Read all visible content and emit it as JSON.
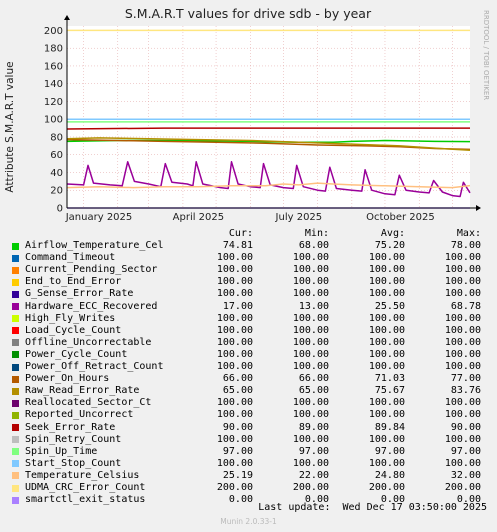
{
  "chart_data": {
    "type": "line",
    "title": "S.M.A.R.T values for drive sdb - by year",
    "ylabel": "Attribute S.M.A.R.T value",
    "side_label": "RRDTOOL / TOBI OETIKER",
    "ylim": [
      0,
      205
    ],
    "yticks": [
      0,
      20,
      40,
      60,
      80,
      100,
      120,
      140,
      160,
      180,
      200
    ],
    "xlim": [
      "2024-12-17",
      "2025-12-17"
    ],
    "xticks": [
      {
        "label": "January 2025",
        "date": "2025-01-15"
      },
      {
        "label": "April 2025",
        "date": "2025-04-15"
      },
      {
        "label": "July 2025",
        "date": "2025-07-15"
      },
      {
        "label": "October 2025",
        "date": "2025-10-15"
      }
    ],
    "grid": true,
    "columns": [
      "Cur:",
      "Min:",
      "Avg:",
      "Max:"
    ],
    "series": [
      {
        "name": "Airflow_Temperature_Cel",
        "color": "#00cc00",
        "cur": "74.81",
        "min": "68.00",
        "avg": "75.20",
        "max": "78.00",
        "points": [
          [
            "2024-12-17",
            75
          ],
          [
            "2025-02-01",
            76
          ],
          [
            "2025-04-01",
            76
          ],
          [
            "2025-06-01",
            75
          ],
          [
            "2025-07-15",
            74
          ],
          [
            "2025-08-15",
            74
          ],
          [
            "2025-09-01",
            75
          ],
          [
            "2025-10-01",
            76
          ],
          [
            "2025-11-15",
            75
          ],
          [
            "2025-12-17",
            74.8
          ]
        ]
      },
      {
        "name": "Command_Timeout",
        "color": "#0066b3",
        "cur": "100.00",
        "min": "100.00",
        "avg": "100.00",
        "max": "100.00",
        "points": [
          [
            "2024-12-17",
            100
          ],
          [
            "2025-12-17",
            100
          ]
        ]
      },
      {
        "name": "Current_Pending_Sector",
        "color": "#ff8000",
        "cur": "100.00",
        "min": "100.00",
        "avg": "100.00",
        "max": "100.00",
        "points": [
          [
            "2024-12-17",
            100
          ],
          [
            "2025-12-17",
            100
          ]
        ]
      },
      {
        "name": "End_to_End_Error",
        "color": "#ffcc00",
        "cur": "100.00",
        "min": "100.00",
        "avg": "100.00",
        "max": "100.00",
        "points": [
          [
            "2024-12-17",
            100
          ],
          [
            "2025-12-17",
            100
          ]
        ]
      },
      {
        "name": "G_Sense_Error_Rate",
        "color": "#330099",
        "cur": "100.00",
        "min": "100.00",
        "avg": "100.00",
        "max": "100.00",
        "points": [
          [
            "2024-12-17",
            100
          ],
          [
            "2025-12-17",
            100
          ]
        ]
      },
      {
        "name": "Hardware_ECC_Recovered",
        "color": "#990099",
        "cur": "17.00",
        "min": "13.00",
        "avg": "25.50",
        "max": "68.78",
        "points": [
          [
            "2024-12-17",
            27
          ],
          [
            "2025-01-01",
            26
          ],
          [
            "2025-01-05",
            48
          ],
          [
            "2025-01-10",
            28
          ],
          [
            "2025-01-25",
            26
          ],
          [
            "2025-02-05",
            25
          ],
          [
            "2025-02-10",
            52
          ],
          [
            "2025-02-16",
            30
          ],
          [
            "2025-03-01",
            27
          ],
          [
            "2025-03-12",
            24
          ],
          [
            "2025-03-16",
            50
          ],
          [
            "2025-03-22",
            29
          ],
          [
            "2025-04-05",
            27
          ],
          [
            "2025-04-10",
            25
          ],
          [
            "2025-04-13",
            52
          ],
          [
            "2025-04-19",
            27
          ],
          [
            "2025-05-05",
            23
          ],
          [
            "2025-05-12",
            22
          ],
          [
            "2025-05-15",
            52
          ],
          [
            "2025-05-21",
            27
          ],
          [
            "2025-06-01",
            24
          ],
          [
            "2025-06-10",
            23
          ],
          [
            "2025-06-13",
            50
          ],
          [
            "2025-06-19",
            26
          ],
          [
            "2025-07-01",
            23
          ],
          [
            "2025-07-10",
            22
          ],
          [
            "2025-07-13",
            48
          ],
          [
            "2025-07-19",
            24
          ],
          [
            "2025-08-01",
            20
          ],
          [
            "2025-08-08",
            19
          ],
          [
            "2025-08-12",
            46
          ],
          [
            "2025-08-18",
            22
          ],
          [
            "2025-09-01",
            20
          ],
          [
            "2025-09-10",
            19
          ],
          [
            "2025-09-13",
            43
          ],
          [
            "2025-09-19",
            20
          ],
          [
            "2025-10-01",
            16
          ],
          [
            "2025-10-10",
            15
          ],
          [
            "2025-10-14",
            37
          ],
          [
            "2025-10-20",
            20
          ],
          [
            "2025-11-01",
            18
          ],
          [
            "2025-11-10",
            17
          ],
          [
            "2025-11-14",
            31
          ],
          [
            "2025-11-22",
            18
          ],
          [
            "2025-12-01",
            14
          ],
          [
            "2025-12-08",
            13
          ],
          [
            "2025-12-11",
            29
          ],
          [
            "2025-12-17",
            17
          ]
        ]
      },
      {
        "name": "High_Fly_Writes",
        "color": "#ccff00",
        "cur": "100.00",
        "min": "100.00",
        "avg": "100.00",
        "max": "100.00",
        "points": [
          [
            "2024-12-17",
            100
          ],
          [
            "2025-12-17",
            100
          ]
        ]
      },
      {
        "name": "Load_Cycle_Count",
        "color": "#ff0000",
        "cur": "100.00",
        "min": "100.00",
        "avg": "100.00",
        "max": "100.00",
        "points": [
          [
            "2024-12-17",
            100
          ],
          [
            "2025-12-17",
            100
          ]
        ]
      },
      {
        "name": "Offline_Uncorrectable",
        "color": "#808080",
        "cur": "100.00",
        "min": "100.00",
        "avg": "100.00",
        "max": "100.00",
        "points": [
          [
            "2024-12-17",
            100
          ],
          [
            "2025-12-17",
            100
          ]
        ]
      },
      {
        "name": "Power_Cycle_Count",
        "color": "#008f00",
        "cur": "100.00",
        "min": "100.00",
        "avg": "100.00",
        "max": "100.00",
        "points": [
          [
            "2024-12-17",
            100
          ],
          [
            "2025-12-17",
            100
          ]
        ]
      },
      {
        "name": "Power_Off_Retract_Count",
        "color": "#00487d",
        "cur": "100.00",
        "min": "100.00",
        "avg": "100.00",
        "max": "100.00",
        "points": [
          [
            "2024-12-17",
            100
          ],
          [
            "2025-12-17",
            100
          ]
        ]
      },
      {
        "name": "Power_On_Hours",
        "color": "#b35a00",
        "cur": "66.00",
        "min": "66.00",
        "avg": "71.03",
        "max": "77.00",
        "points": [
          [
            "2024-12-17",
            77
          ],
          [
            "2025-02-01",
            76
          ],
          [
            "2025-03-15",
            75
          ],
          [
            "2025-05-01",
            74
          ],
          [
            "2025-06-15",
            73
          ],
          [
            "2025-08-01",
            71
          ],
          [
            "2025-09-15",
            70
          ],
          [
            "2025-10-15",
            69
          ],
          [
            "2025-11-15",
            67
          ],
          [
            "2025-12-17",
            66
          ]
        ]
      },
      {
        "name": "Raw_Read_Error_Rate",
        "color": "#b38f00",
        "cur": "65.00",
        "min": "65.00",
        "avg": "75.67",
        "max": "83.76",
        "points": [
          [
            "2024-12-17",
            78
          ],
          [
            "2025-01-15",
            79
          ],
          [
            "2025-03-01",
            78
          ],
          [
            "2025-04-15",
            77
          ],
          [
            "2025-06-01",
            76
          ],
          [
            "2025-07-15",
            74
          ],
          [
            "2025-09-01",
            72
          ],
          [
            "2025-10-15",
            70
          ],
          [
            "2025-11-20",
            67
          ],
          [
            "2025-12-17",
            65
          ]
        ]
      },
      {
        "name": "Reallocated_Sector_Ct",
        "color": "#6b006b",
        "cur": "100.00",
        "min": "100.00",
        "avg": "100.00",
        "max": "100.00",
        "points": [
          [
            "2024-12-17",
            100
          ],
          [
            "2025-12-17",
            100
          ]
        ]
      },
      {
        "name": "Reported_Uncorrect",
        "color": "#8fb300",
        "cur": "100.00",
        "min": "100.00",
        "avg": "100.00",
        "max": "100.00",
        "points": [
          [
            "2024-12-17",
            100
          ],
          [
            "2025-12-17",
            100
          ]
        ]
      },
      {
        "name": "Seek_Error_Rate",
        "color": "#b30000",
        "cur": "90.00",
        "min": "89.00",
        "avg": "89.84",
        "max": "90.00",
        "points": [
          [
            "2024-12-17",
            89
          ],
          [
            "2025-03-15",
            90
          ],
          [
            "2025-12-17",
            90
          ]
        ]
      },
      {
        "name": "Spin_Retry_Count",
        "color": "#bebebe",
        "cur": "100.00",
        "min": "100.00",
        "avg": "100.00",
        "max": "100.00",
        "points": [
          [
            "2024-12-17",
            100
          ],
          [
            "2025-12-17",
            100
          ]
        ]
      },
      {
        "name": "Spin_Up_Time",
        "color": "#80ff80",
        "cur": "97.00",
        "min": "97.00",
        "avg": "97.00",
        "max": "97.00",
        "points": [
          [
            "2024-12-17",
            97
          ],
          [
            "2025-12-17",
            97
          ]
        ]
      },
      {
        "name": "Start_Stop_Count",
        "color": "#80c9ff",
        "cur": "100.00",
        "min": "100.00",
        "avg": "100.00",
        "max": "100.00",
        "points": [
          [
            "2024-12-17",
            100
          ],
          [
            "2025-12-17",
            100
          ]
        ]
      },
      {
        "name": "Temperature_Celsius",
        "color": "#ffc080",
        "cur": "25.19",
        "min": "22.00",
        "avg": "24.80",
        "max": "32.00",
        "points": [
          [
            "2024-12-17",
            23
          ],
          [
            "2025-01-15",
            24
          ],
          [
            "2025-02-15",
            23
          ],
          [
            "2025-03-15",
            24
          ],
          [
            "2025-04-15",
            24
          ],
          [
            "2025-05-15",
            25
          ],
          [
            "2025-06-15",
            25
          ],
          [
            "2025-07-01",
            27
          ],
          [
            "2025-07-15",
            26
          ],
          [
            "2025-08-01",
            28
          ],
          [
            "2025-08-15",
            27
          ],
          [
            "2025-09-01",
            26
          ],
          [
            "2025-10-01",
            25
          ],
          [
            "2025-11-01",
            24
          ],
          [
            "2025-12-01",
            23
          ],
          [
            "2025-12-17",
            25.2
          ]
        ]
      },
      {
        "name": "UDMA_CRC_Error_Count",
        "color": "#ffe680",
        "cur": "200.00",
        "min": "200.00",
        "avg": "200.00",
        "max": "200.00",
        "points": [
          [
            "2024-12-17",
            200
          ],
          [
            "2025-12-17",
            200
          ]
        ]
      },
      {
        "name": "smartctl_exit_status",
        "color": "#aa80ff",
        "cur": "0.00",
        "min": "0.00",
        "avg": "0.00",
        "max": "0.00",
        "points": [
          [
            "2024-12-17",
            0
          ],
          [
            "2025-12-17",
            0
          ]
        ]
      }
    ]
  },
  "footer": {
    "last_update": "Last update:  Wed Dec 17 03:50:00 2025",
    "munin": "Munin 2.0.33-1"
  }
}
